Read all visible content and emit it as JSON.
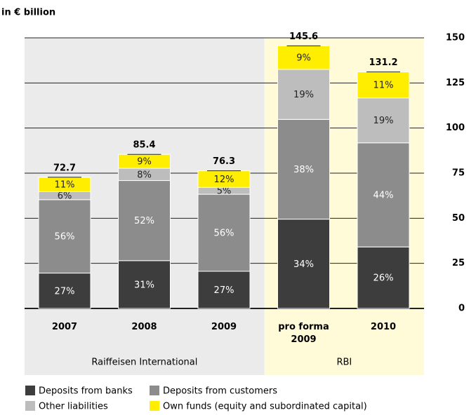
{
  "chart_data": {
    "type": "stacked_bar",
    "y_label": "in € billion",
    "categories": [
      "2007",
      "2008",
      "2009",
      "pro forma 2009",
      "2010"
    ],
    "groups": [
      {
        "name": "Raiffeisen International",
        "color": "#ebebeb",
        "categories": [
          0,
          1,
          2
        ]
      },
      {
        "name": "RBI",
        "color": "#fffbd9",
        "categories": [
          3,
          4
        ]
      }
    ],
    "series": [
      {
        "name": "Deposits from banks",
        "color": "#3d3d3d",
        "values": [
          19.6,
          26.5,
          20.6,
          49.5,
          34.1
        ],
        "labels": [
          "27%",
          "31%",
          "27%",
          "34%",
          "26%"
        ]
      },
      {
        "name": "Deposits from customers",
        "color": "#8c8c8c",
        "values": [
          40.7,
          44.4,
          42.7,
          55.3,
          57.7
        ],
        "labels": [
          "56%",
          "52%",
          "56%",
          "38%",
          "44%"
        ]
      },
      {
        "name": "Other liabilities",
        "color": "#bdbdbd",
        "values": [
          4.4,
          6.8,
          3.8,
          27.7,
          24.9
        ],
        "labels": [
          "6%",
          "8%",
          "5%",
          "19%",
          "19%"
        ]
      },
      {
        "name": "Own funds (equity and subordinated capital)",
        "color": "#ffee00",
        "values": [
          8.0,
          7.7,
          9.2,
          13.1,
          14.4
        ],
        "labels": [
          "11%",
          "9%",
          "12%",
          "9%",
          "11%"
        ]
      }
    ],
    "totals": [
      72.7,
      85.4,
      76.3,
      145.6,
      131.2
    ],
    "ylim": [
      0,
      150
    ],
    "yticks": [
      0,
      25,
      50,
      75,
      100,
      125,
      150
    ],
    "grid": true
  }
}
